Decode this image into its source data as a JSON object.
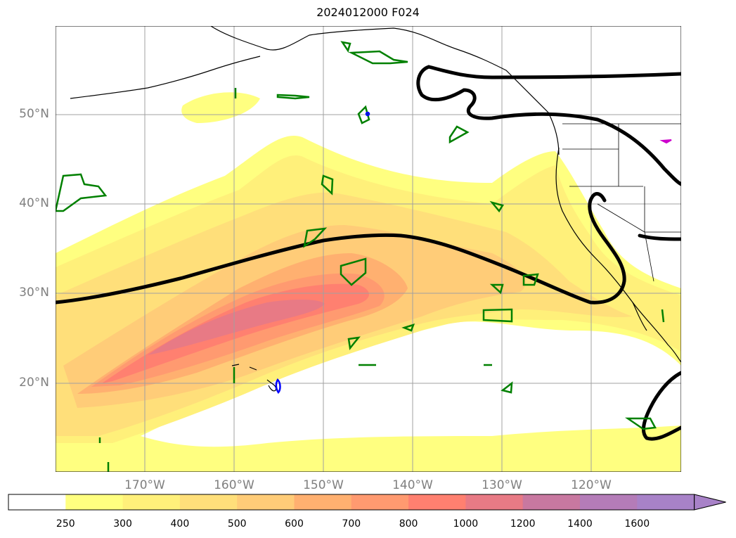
{
  "title": "2024012000 F024",
  "map": {
    "lat_labels": [
      "50°N",
      "40°N",
      "30°N",
      "20°N"
    ],
    "lon_labels": [
      "170°W",
      "160°W",
      "150°W",
      "140°W",
      "130°W",
      "120°W"
    ],
    "gridlines": true,
    "background": "#ffffff"
  },
  "colorbar": {
    "ticks": [
      "250",
      "300",
      "400",
      "500",
      "600",
      "700",
      "800",
      "1000",
      "1200",
      "1400",
      "1600"
    ],
    "colors": [
      "#ffffff",
      "#ffff80",
      "#fff07a",
      "#ffdf7a",
      "#ffcc78",
      "#ffb070",
      "#ff9a70",
      "#ff8070",
      "#e87a85",
      "#c878a0",
      "#b47cb8",
      "#a882c8"
    ],
    "extend": "max"
  },
  "contour_colors": {
    "jet_line": "#000000",
    "green_contours": "#008000",
    "blue_contours": "#0000ff",
    "magenta_contours": "#cc00cc"
  }
}
